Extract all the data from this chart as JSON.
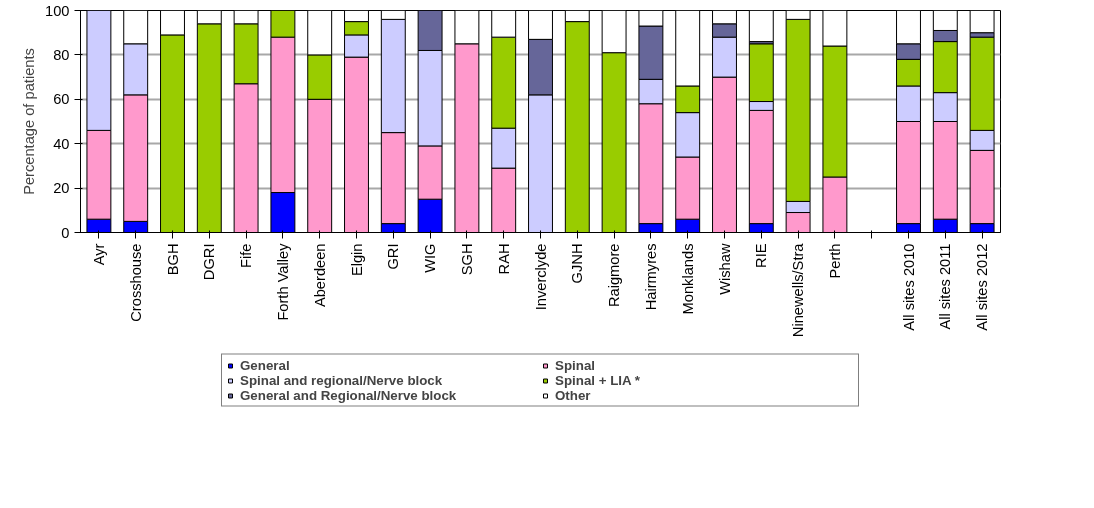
{
  "chart_data": {
    "type": "bar",
    "stacked": true,
    "ylabel": "Percentage of patients",
    "categories": [
      "Ayr",
      "Crosshouse",
      "BGH",
      "DGRI",
      "Fife",
      "Forth Valley",
      "Aberdeen",
      "Elgin",
      "GRI",
      "WIG",
      "SGH",
      "RAH",
      "Inverclyde",
      "GJNH",
      "Raigmore",
      "Hairmyres",
      "Monklands",
      "Wishaw",
      "RIE",
      "Ninewells/Stra",
      "Perth",
      null,
      "All sites 2010",
      "All sites 2011",
      "All sites 2012"
    ],
    "series": [
      {
        "name": "General",
        "color": "#0000ff",
        "values": [
          6,
          5,
          null,
          null,
          null,
          18,
          null,
          null,
          4,
          15,
          null,
          null,
          null,
          null,
          null,
          4,
          6,
          null,
          4,
          null,
          null,
          null,
          4,
          6,
          4
        ]
      },
      {
        "name": "Spinal",
        "color": "#ff99cc",
        "values": [
          40,
          57,
          null,
          null,
          67,
          70,
          60,
          79,
          41,
          24,
          85,
          29,
          null,
          null,
          null,
          54,
          28,
          70,
          51,
          9,
          25,
          null,
          46,
          44,
          33
        ]
      },
      {
        "name": "Spinal and regional/Nerve block",
        "color": "#ccccff",
        "values": [
          54,
          23,
          null,
          null,
          null,
          null,
          null,
          10,
          51,
          43,
          null,
          18,
          62,
          null,
          null,
          11,
          20,
          18,
          4,
          5,
          null,
          null,
          16,
          13,
          9
        ]
      },
      {
        "name": "Spinal + LIA *",
        "color": "#99cc00",
        "values": [
          null,
          null,
          89,
          94,
          27,
          12,
          20,
          6,
          null,
          null,
          null,
          41,
          null,
          95,
          81,
          null,
          12,
          null,
          26,
          82,
          59,
          null,
          12,
          23,
          42
        ]
      },
      {
        "name": "General and Regional/Nerve block",
        "color": "#666699",
        "values": [
          null,
          null,
          null,
          null,
          null,
          null,
          null,
          null,
          null,
          18,
          null,
          null,
          25,
          null,
          null,
          24,
          null,
          6,
          1,
          null,
          null,
          null,
          7,
          5,
          2
        ]
      },
      {
        "name": "Other",
        "color": "#ffffff",
        "values": [
          null,
          15,
          11,
          6,
          6,
          null,
          20,
          5,
          4,
          null,
          15,
          12,
          13,
          5,
          19,
          7,
          34,
          6,
          14,
          4,
          16,
          null,
          15,
          9,
          10
        ]
      }
    ],
    "ylim": [
      0,
      100
    ],
    "yticks": [
      0,
      20,
      40,
      60,
      80,
      100
    ],
    "grid": "y",
    "legend": "bottom"
  }
}
